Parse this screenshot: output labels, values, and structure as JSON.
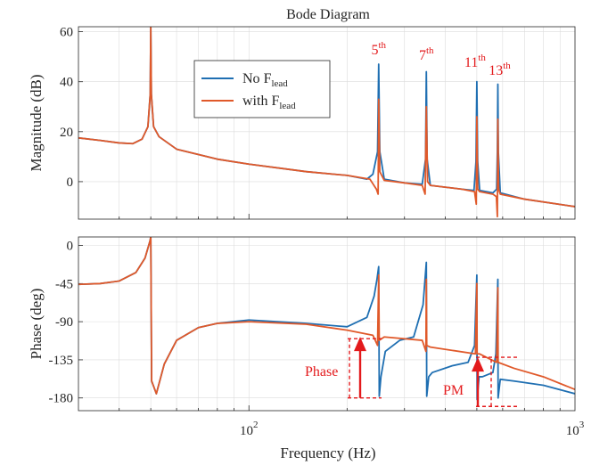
{
  "title": "Bode Diagram",
  "chart_data": {
    "type": "line",
    "xscale": "log",
    "xlim": [
      30,
      1000
    ],
    "xlabel": "Frequency (Hz)",
    "xticks": [
      100,
      1000
    ],
    "colors": {
      "no_lead": "#1f6fb2",
      "with_lead": "#e0592a",
      "annotation": "#e31a1c"
    },
    "legend": {
      "placement": "top-left-inside",
      "entries": [
        {
          "id": "no_lead",
          "text": "No",
          "symbol": "F",
          "sub": "lead"
        },
        {
          "id": "with_lead",
          "text": "with",
          "symbol": "F",
          "sub": "lead"
        }
      ]
    },
    "magnitude": {
      "ylabel": "Magnitude (dB)",
      "ylim": [
        -15,
        62
      ],
      "yticks": [
        0,
        20,
        40,
        60
      ],
      "series": [
        {
          "id": "no_lead",
          "points": [
            [
              30,
              17.5
            ],
            [
              35,
              16.5
            ],
            [
              40,
              15.5
            ],
            [
              44,
              15.2
            ],
            [
              47,
              17
            ],
            [
              49,
              22
            ],
            [
              49.8,
              35
            ],
            [
              50,
              62
            ],
            [
              50.2,
              35
            ],
            [
              51,
              22
            ],
            [
              53,
              18
            ],
            [
              60,
              13
            ],
            [
              80,
              9
            ],
            [
              100,
              7
            ],
            [
              150,
              4
            ],
            [
              200,
              2.5
            ],
            [
              230,
              1
            ],
            [
              240,
              3
            ],
            [
              248,
              12
            ],
            [
              250,
              47
            ],
            [
              252,
              12
            ],
            [
              260,
              1
            ],
            [
              300,
              -0.5
            ],
            [
              340,
              -1
            ],
            [
              348,
              9
            ],
            [
              350,
              44
            ],
            [
              352,
              9
            ],
            [
              360,
              -1.5
            ],
            [
              450,
              -3
            ],
            [
              490,
              -3.5
            ],
            [
              497,
              8
            ],
            [
              500,
              40
            ],
            [
              503,
              8
            ],
            [
              510,
              -3.5
            ],
            [
              560,
              -4.5
            ],
            [
              575,
              -3
            ],
            [
              578,
              12
            ],
            [
              580,
              39
            ],
            [
              582,
              12
            ],
            [
              590,
              -4.5
            ],
            [
              700,
              -7
            ],
            [
              1000,
              -10
            ]
          ]
        },
        {
          "id": "with_lead",
          "points": [
            [
              30,
              17.5
            ],
            [
              35,
              16.5
            ],
            [
              40,
              15.5
            ],
            [
              44,
              15.2
            ],
            [
              47,
              17
            ],
            [
              49,
              22
            ],
            [
              49.8,
              35
            ],
            [
              50,
              62
            ],
            [
              50.2,
              35
            ],
            [
              51,
              22
            ],
            [
              53,
              18
            ],
            [
              60,
              13
            ],
            [
              80,
              9
            ],
            [
              100,
              7
            ],
            [
              150,
              4
            ],
            [
              200,
              2.5
            ],
            [
              235,
              1
            ],
            [
              246,
              -3
            ],
            [
              249,
              -5
            ],
            [
              250,
              33
            ],
            [
              252,
              4
            ],
            [
              260,
              0.5
            ],
            [
              300,
              -0.5
            ],
            [
              340,
              -1.5
            ],
            [
              347,
              -5
            ],
            [
              350,
              30
            ],
            [
              353,
              0
            ],
            [
              360,
              -1.5
            ],
            [
              450,
              -3
            ],
            [
              492,
              -4
            ],
            [
              498,
              -9
            ],
            [
              500,
              26
            ],
            [
              503,
              -3
            ],
            [
              510,
              -4
            ],
            [
              560,
              -5
            ],
            [
              574,
              -6
            ],
            [
              578,
              -14
            ],
            [
              580,
              25
            ],
            [
              583,
              -3
            ],
            [
              590,
              -5
            ],
            [
              700,
              -7
            ],
            [
              1000,
              -10
            ]
          ]
        }
      ]
    },
    "phase": {
      "ylabel": "Phase (deg)",
      "ylim": [
        -195,
        10
      ],
      "yticks": [
        0,
        -45,
        -90,
        -135,
        -180
      ],
      "series": [
        {
          "id": "no_lead",
          "points": [
            [
              30,
              -46
            ],
            [
              35,
              -45
            ],
            [
              40,
              -42
            ],
            [
              45,
              -32
            ],
            [
              48,
              -15
            ],
            [
              49.7,
              5
            ],
            [
              50,
              10
            ],
            [
              50.3,
              -160
            ],
            [
              52,
              -175
            ],
            [
              55,
              -140
            ],
            [
              60,
              -112
            ],
            [
              70,
              -97
            ],
            [
              80,
              -92
            ],
            [
              100,
              -88
            ],
            [
              150,
              -92
            ],
            [
              200,
              -96
            ],
            [
              230,
              -85
            ],
            [
              242,
              -60
            ],
            [
              247,
              -40
            ],
            [
              250,
              -25
            ],
            [
              251,
              -178
            ],
            [
              254,
              -155
            ],
            [
              262,
              -125
            ],
            [
              290,
              -112
            ],
            [
              320,
              -108
            ],
            [
              342,
              -70
            ],
            [
              350,
              -20
            ],
            [
              351,
              -178
            ],
            [
              356,
              -155
            ],
            [
              365,
              -150
            ],
            [
              420,
              -142
            ],
            [
              470,
              -138
            ],
            [
              492,
              -118
            ],
            [
              500,
              -35
            ],
            [
              501,
              -182
            ],
            [
              508,
              -155
            ],
            [
              520,
              -155
            ],
            [
              560,
              -150
            ],
            [
              572,
              -128
            ],
            [
              580,
              -40
            ],
            [
              581,
              -180
            ],
            [
              590,
              -158
            ],
            [
              650,
              -160
            ],
            [
              800,
              -165
            ],
            [
              1000,
              -175
            ]
          ]
        },
        {
          "id": "with_lead",
          "points": [
            [
              30,
              -46
            ],
            [
              35,
              -45
            ],
            [
              40,
              -42
            ],
            [
              45,
              -32
            ],
            [
              48,
              -15
            ],
            [
              49.7,
              5
            ],
            [
              50,
              10
            ],
            [
              50.3,
              -160
            ],
            [
              52,
              -175
            ],
            [
              55,
              -140
            ],
            [
              60,
              -112
            ],
            [
              70,
              -97
            ],
            [
              80,
              -92
            ],
            [
              100,
              -90
            ],
            [
              150,
              -93
            ],
            [
              200,
              -100
            ],
            [
              240,
              -106
            ],
            [
              248,
              -118
            ],
            [
              250,
              -35
            ],
            [
              251,
              -112
            ],
            [
              260,
              -108
            ],
            [
              340,
              -112
            ],
            [
              349,
              -125
            ],
            [
              350,
              -40
            ],
            [
              351,
              -118
            ],
            [
              360,
              -120
            ],
            [
              495,
              -128
            ],
            [
              500,
              -45
            ],
            [
              501,
              -128
            ],
            [
              510,
              -128
            ],
            [
              575,
              -138
            ],
            [
              580,
              -50
            ],
            [
              581,
              -138
            ],
            [
              650,
              -145
            ],
            [
              800,
              -155
            ],
            [
              1000,
              -170
            ]
          ]
        }
      ]
    },
    "annotations": {
      "harmonics": [
        {
          "freq": 250,
          "base": "5",
          "sup": "th"
        },
        {
          "freq": 350,
          "base": "7",
          "sup": "th"
        },
        {
          "freq": 500,
          "base": "11",
          "sup": "th"
        },
        {
          "freq": 580,
          "base": "13",
          "sup": "th"
        }
      ],
      "phase_text": "Phase",
      "pm_text": "PM"
    }
  }
}
